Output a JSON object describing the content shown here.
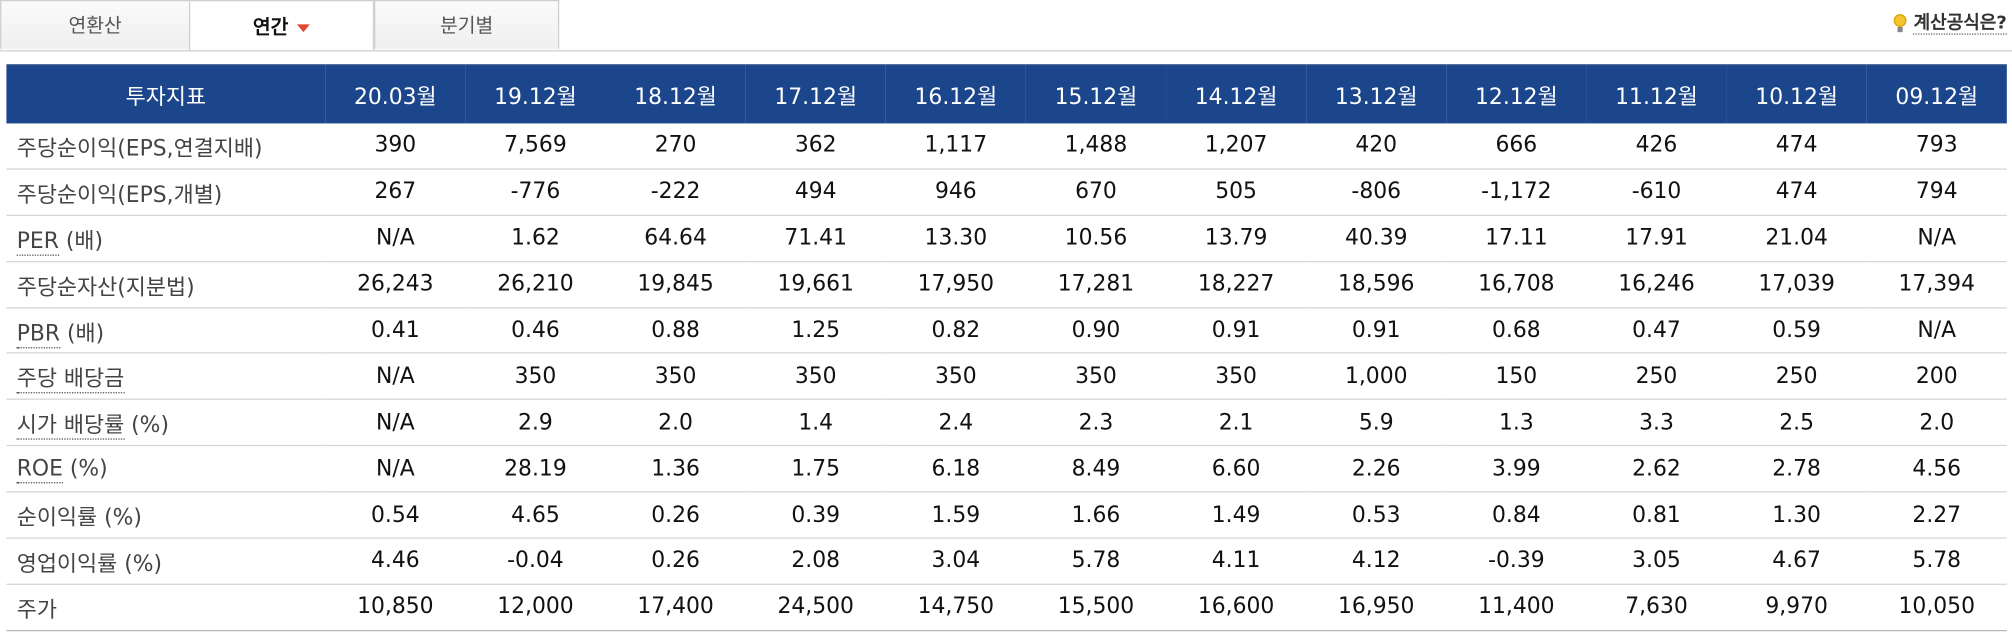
{
  "tabs": [
    {
      "label": "연환산",
      "active": false
    },
    {
      "label": "연간",
      "active": true
    },
    {
      "label": "분기별",
      "active": false
    }
  ],
  "help": {
    "label": "계산공식은?",
    "icon": "lightbulb-icon"
  },
  "colors": {
    "header_bg": "#1c468c",
    "caret": "#e2462f"
  },
  "table": {
    "header_label": "투자지표",
    "periods": [
      "20.03월",
      "19.12월",
      "18.12월",
      "17.12월",
      "16.12월",
      "15.12월",
      "14.12월",
      "13.12월",
      "12.12월",
      "11.12월",
      "10.12월",
      "09.12월"
    ],
    "rows": [
      {
        "label": "주당순이익(EPS,연결지배)",
        "term": "",
        "suffix": "",
        "values": [
          "390",
          "7,569",
          "270",
          "362",
          "1,117",
          "1,488",
          "1,207",
          "420",
          "666",
          "426",
          "474",
          "793"
        ]
      },
      {
        "label": "주당순이익(EPS,개별)",
        "term": "",
        "suffix": "",
        "values": [
          "267",
          "-776",
          "-222",
          "494",
          "946",
          "670",
          "505",
          "-806",
          "-1,172",
          "-610",
          "474",
          "794"
        ]
      },
      {
        "label": "",
        "term": "PER",
        "suffix": " (배)",
        "values": [
          "N/A",
          "1.62",
          "64.64",
          "71.41",
          "13.30",
          "10.56",
          "13.79",
          "40.39",
          "17.11",
          "17.91",
          "21.04",
          "N/A"
        ]
      },
      {
        "label": "주당순자산(지분법)",
        "term": "",
        "suffix": "",
        "values": [
          "26,243",
          "26,210",
          "19,845",
          "19,661",
          "17,950",
          "17,281",
          "18,227",
          "18,596",
          "16,708",
          "16,246",
          "17,039",
          "17,394"
        ]
      },
      {
        "label": "",
        "term": "PBR",
        "suffix": " (배)",
        "values": [
          "0.41",
          "0.46",
          "0.88",
          "1.25",
          "0.82",
          "0.90",
          "0.91",
          "0.91",
          "0.68",
          "0.47",
          "0.59",
          "N/A"
        ]
      },
      {
        "label": "",
        "term": "주당 배당금",
        "suffix": "",
        "values": [
          "N/A",
          "350",
          "350",
          "350",
          "350",
          "350",
          "350",
          "1,000",
          "150",
          "250",
          "250",
          "200"
        ]
      },
      {
        "label": "",
        "term": "시가 배당률",
        "suffix": " (%)",
        "values": [
          "N/A",
          "2.9",
          "2.0",
          "1.4",
          "2.4",
          "2.3",
          "2.1",
          "5.9",
          "1.3",
          "3.3",
          "2.5",
          "2.0"
        ]
      },
      {
        "label": "",
        "term": "ROE",
        "suffix": " (%)",
        "values": [
          "N/A",
          "28.19",
          "1.36",
          "1.75",
          "6.18",
          "8.49",
          "6.60",
          "2.26",
          "3.99",
          "2.62",
          "2.78",
          "4.56"
        ]
      },
      {
        "label": "순이익률 (%)",
        "term": "",
        "suffix": "",
        "values": [
          "0.54",
          "4.65",
          "0.26",
          "0.39",
          "1.59",
          "1.66",
          "1.49",
          "0.53",
          "0.84",
          "0.81",
          "1.30",
          "2.27"
        ]
      },
      {
        "label": "영업이익률 (%)",
        "term": "",
        "suffix": "",
        "values": [
          "4.46",
          "-0.04",
          "0.26",
          "2.08",
          "3.04",
          "5.78",
          "4.11",
          "4.12",
          "-0.39",
          "3.05",
          "4.67",
          "5.78"
        ]
      },
      {
        "label": "주가",
        "term": "",
        "suffix": "",
        "values": [
          "10,850",
          "12,000",
          "17,400",
          "24,500",
          "14,750",
          "15,500",
          "16,600",
          "16,950",
          "11,400",
          "7,630",
          "9,970",
          "10,050"
        ]
      }
    ]
  }
}
